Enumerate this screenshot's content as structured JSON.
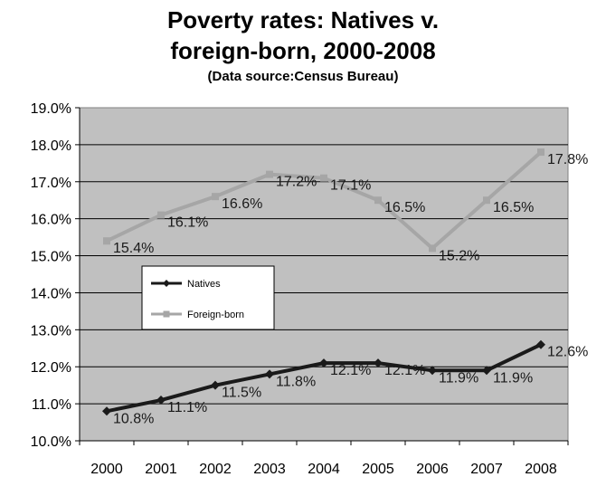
{
  "chart_data": {
    "type": "line",
    "title_line1": "Poverty rates: Natives v.",
    "title_line2": "foreign-born, 2000-2008",
    "subtitle": "(Data source:Census Bureau)",
    "xlabel": "",
    "ylabel": "",
    "x": [
      "2000",
      "2001",
      "2002",
      "2003",
      "2004",
      "2005",
      "2006",
      "2007",
      "2008"
    ],
    "ylim": [
      10.0,
      19.0
    ],
    "yticks": [
      "10.0%",
      "11.0%",
      "12.0%",
      "13.0%",
      "14.0%",
      "15.0%",
      "16.0%",
      "17.0%",
      "18.0%",
      "19.0%"
    ],
    "grid": true,
    "legend_position": "middle-left",
    "plot_background": "#c0c0c0",
    "series": [
      {
        "name": "Natives",
        "color": "#1a1a1a",
        "marker": "diamond",
        "values": [
          10.8,
          11.1,
          11.5,
          11.8,
          12.1,
          12.1,
          11.9,
          11.9,
          12.6
        ],
        "labels": [
          "10.8%",
          "11.1%",
          "11.5%",
          "11.8%",
          "12.1%",
          "12.1%",
          "11.9%",
          "11.9%",
          "12.6%"
        ]
      },
      {
        "name": "Foreign-born",
        "color": "#a6a6a6",
        "marker": "square",
        "values": [
          15.4,
          16.1,
          16.6,
          17.2,
          17.1,
          16.5,
          15.2,
          16.5,
          17.8
        ],
        "labels": [
          "15.4%",
          "16.1%",
          "16.6%",
          "17.2%",
          "17.1%",
          "16.5%",
          "15.2%",
          "16.5%",
          "17.8%"
        ]
      }
    ]
  }
}
